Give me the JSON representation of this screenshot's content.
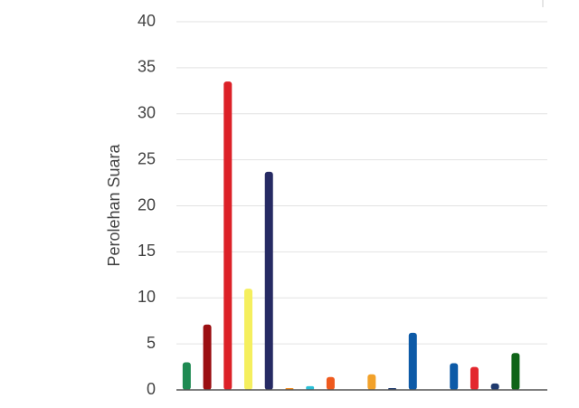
{
  "chart_data": {
    "type": "bar",
    "y_label": "Perolehan Suara",
    "categories": [
      null,
      null,
      null,
      null,
      null,
      null,
      null,
      null,
      null,
      null,
      null,
      null,
      null,
      null,
      null,
      null,
      null
    ],
    "values": [
      3.0,
      7.1,
      33.5,
      11.0,
      23.7,
      0.2,
      0.4,
      1.4,
      0,
      1.7,
      0.2,
      6.2,
      0,
      2.9,
      2.5,
      0.7,
      4.0
    ],
    "colors": [
      "#1e8a52",
      "#9b0f12",
      "#dc2128",
      "#f5ef5e",
      "#262a63",
      "#f08a1c",
      "#2bbfd6",
      "#ef5a1e",
      "#888888",
      "#f2a12a",
      "#1f3a6e",
      "#0d5aa7",
      "#888888",
      "#0d5aa7",
      "#e3272e",
      "#1f3a6e",
      "#0f6418"
    ],
    "ylim": [
      0,
      40
    ],
    "yticks": [
      0,
      5,
      10,
      15,
      20,
      25,
      30,
      35,
      40
    ],
    "grid": true
  }
}
